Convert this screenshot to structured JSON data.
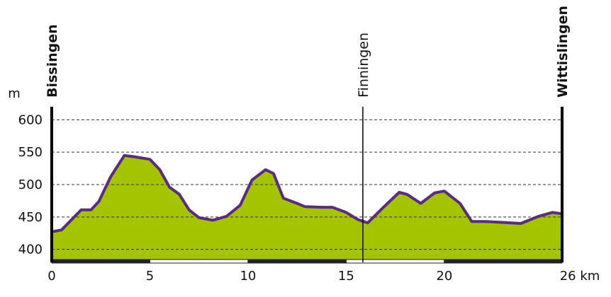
{
  "chart_data": {
    "type": "area",
    "y_label": "m",
    "x": [
      0,
      0.5,
      1.5,
      2,
      2.4,
      3,
      3.7,
      4.2,
      5,
      5.5,
      6,
      6.5,
      7,
      7.5,
      8.2,
      8.9,
      9.6,
      10.2,
      10.9,
      11.3,
      11.8,
      12.5,
      12.9,
      13.8,
      14.3,
      15,
      15.6,
      16.1,
      16.9,
      17.7,
      18.1,
      18.8,
      19.5,
      20,
      20.8,
      21.4,
      22.1,
      22.8,
      23.9,
      24.8,
      25.5,
      26
    ],
    "values": [
      427,
      430,
      461,
      461,
      474,
      512,
      545,
      543,
      539,
      523,
      496,
      485,
      461,
      449,
      445,
      451,
      468,
      507,
      523,
      517,
      479,
      471,
      466,
      465,
      465,
      457,
      446,
      441,
      465,
      488,
      485,
      471,
      487,
      490,
      471,
      443,
      443,
      442,
      440,
      451,
      457,
      455
    ],
    "fill_color": "#a5c400",
    "line_color": "#5b2a86",
    "xlim": [
      0,
      26
    ],
    "xticks": [
      0,
      5,
      10,
      15,
      20,
      {
        "value": 26,
        "label": "26 km"
      }
    ],
    "ylim": [
      380,
      620
    ],
    "yticks": [
      400,
      450,
      500,
      550,
      600
    ],
    "grid": true,
    "places": [
      {
        "name": "Bissingen",
        "km": 0,
        "major": true
      },
      {
        "name": "Finningen",
        "km": 15.85,
        "major": false
      },
      {
        "name": "Wittislingen",
        "km": 26,
        "major": true
      }
    ]
  }
}
